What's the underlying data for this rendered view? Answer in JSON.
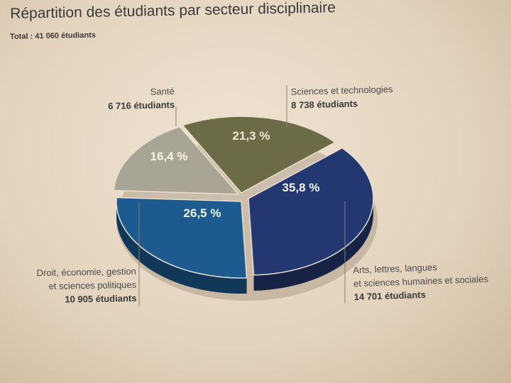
{
  "chart_data": {
    "type": "pie",
    "title": "Répartition des étudiants par secteur disciplinaire",
    "subtitle": "Total : 41 060 étudiants",
    "slices": [
      {
        "label_lines": [
          "Sciences et technologies"
        ],
        "count": "8 738 étudiants",
        "value": 21.3,
        "pct_label": "21,3 %",
        "color": "#6b6b47"
      },
      {
        "label_lines": [
          "Arts, lettres, langues",
          "et sciences humaines et sociales"
        ],
        "count": "14 701 étudiants",
        "value": 35.8,
        "pct_label": "35,8 %",
        "color": "#233870"
      },
      {
        "label_lines": [
          "Droit, économie, gestion",
          "et sciences politiques"
        ],
        "count": "10 905 étudiants",
        "value": 26.5,
        "pct_label": "26,5 %",
        "color": "#1c5a90"
      },
      {
        "label_lines": [
          "Santé"
        ],
        "count": "6 716 étudiants",
        "value": 16.4,
        "pct_label": "16,4 %",
        "color": "#a9a596"
      }
    ]
  }
}
